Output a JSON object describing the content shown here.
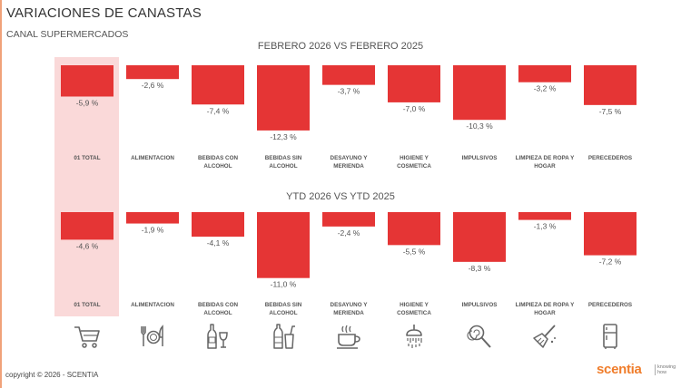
{
  "header": {
    "title": "VARIACIONES DE CANASTAS",
    "subtitle": "CANAL SUPERMERCADOS"
  },
  "chart_data": [
    {
      "type": "bar",
      "title": "FEBRERO 2026 VS FEBRERO 2025",
      "categories": [
        [
          "01 TOTAL"
        ],
        [
          "ALIMENTACION"
        ],
        [
          "BEBIDAS CON",
          "ALCOHOL"
        ],
        [
          "BEBIDAS SIN",
          "ALCOHOL"
        ],
        [
          "DESAYUNO Y",
          "MERIENDA"
        ],
        [
          "HIGIENE Y",
          "COSMETICA"
        ],
        [
          "IMPULSIVOS"
        ],
        [
          "LIMPIEZA DE ROPA Y",
          "HOGAR"
        ],
        [
          "PERECEDEROS"
        ]
      ],
      "values": [
        -5.9,
        -2.6,
        -7.4,
        -12.3,
        -3.7,
        -7.0,
        -10.3,
        -3.2,
        -7.5
      ],
      "labels": [
        "-5,9 %",
        "-2,6 %",
        "-7,4 %",
        "-12,3 %",
        "-3,7 %",
        "-7,0 %",
        "-10,3 %",
        "-3,2 %",
        "-7,5 %"
      ],
      "ylim": [
        -13,
        0
      ],
      "highlight_category": "01 TOTAL"
    },
    {
      "type": "bar",
      "title": "YTD 2026 VS YTD 2025",
      "categories": [
        [
          "01 TOTAL"
        ],
        [
          "ALIMENTACION"
        ],
        [
          "BEBIDAS CON",
          "ALCOHOL"
        ],
        [
          "BEBIDAS SIN",
          "ALCOHOL"
        ],
        [
          "DESAYUNO Y",
          "MERIENDA"
        ],
        [
          "HIGIENE Y",
          "COSMETICA"
        ],
        [
          "IMPULSIVOS"
        ],
        [
          "LIMPIEZA DE ROPA Y",
          "HOGAR"
        ],
        [
          "PERECEDEROS"
        ]
      ],
      "values": [
        -4.6,
        -1.9,
        -4.1,
        -11.0,
        -2.4,
        -5.5,
        -8.3,
        -1.3,
        -7.2
      ],
      "labels": [
        "-4,6 %",
        "-1,9 %",
        "-4,1 %",
        "-11,0 %",
        "-2,4 %",
        "-5,5 %",
        "-8,3 %",
        "-1,3 %",
        "-7,2 %"
      ],
      "ylim": [
        -11.5,
        0
      ],
      "highlight_category": "01 TOTAL"
    }
  ],
  "icons": [
    "shopping-cart-icon",
    "cutlery-plate-icon",
    "wine-bottle-icon",
    "soda-bottle-icon",
    "coffee-cup-icon",
    "shower-icon",
    "lollipop-icon",
    "broom-icon",
    "fridge-icon"
  ],
  "colors": {
    "bar": "#e53535",
    "highlight": "#fad9d9",
    "accent": "#f07d2b"
  },
  "footer": {
    "copyright": "copyright © 2026 - SCENTIA",
    "logo": "scentia",
    "logo_tagline_1": "knowing",
    "logo_tagline_2": "how"
  }
}
